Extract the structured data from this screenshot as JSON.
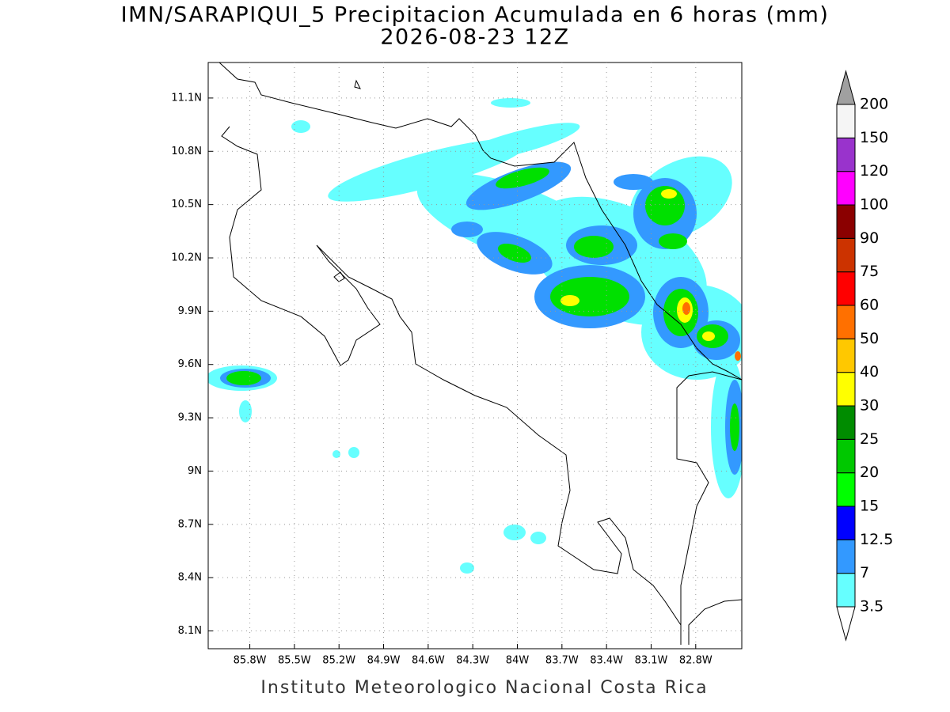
{
  "header": {
    "title": "IMN/SARAPIQUI_5 Precipitacion Acumulada en 6 horas (mm)",
    "subtitle": "2026-08-23 12Z"
  },
  "map": {
    "lon_range": [
      -86.08,
      -82.49
    ],
    "lat_range": [
      8.0,
      11.3
    ],
    "lon_ticks": [
      {
        "value": -85.8,
        "label": "85.8W"
      },
      {
        "value": -85.5,
        "label": "85.5W"
      },
      {
        "value": -85.2,
        "label": "85.2W"
      },
      {
        "value": -84.9,
        "label": "84.9W"
      },
      {
        "value": -84.6,
        "label": "84.6W"
      },
      {
        "value": -84.3,
        "label": "84.3W"
      },
      {
        "value": -84.0,
        "label": "84W"
      },
      {
        "value": -83.7,
        "label": "83.7W"
      },
      {
        "value": -83.4,
        "label": "83.4W"
      },
      {
        "value": -83.1,
        "label": "83.1W"
      },
      {
        "value": -82.8,
        "label": "82.8W"
      }
    ],
    "lat_ticks": [
      {
        "value": 11.1,
        "label": "11.1N"
      },
      {
        "value": 10.8,
        "label": "10.8N"
      },
      {
        "value": 10.5,
        "label": "10.5N"
      },
      {
        "value": 10.2,
        "label": "10.2N"
      },
      {
        "value": 9.9,
        "label": "9.9N"
      },
      {
        "value": 9.6,
        "label": "9.6N"
      },
      {
        "value": 9.3,
        "label": "9.3N"
      },
      {
        "value": 9.0,
        "label": "9N"
      },
      {
        "value": 8.7,
        "label": "8.7N"
      },
      {
        "value": 8.4,
        "label": "8.4N"
      },
      {
        "value": 8.1,
        "label": "8.1N"
      }
    ],
    "grid": true,
    "colorbar": {
      "levels": [
        3.5,
        7,
        12.5,
        15,
        20,
        25,
        30,
        40,
        50,
        60,
        75,
        90,
        100,
        120,
        150,
        200
      ],
      "colors": [
        "#66ffff",
        "#3399ff",
        "#0000ff",
        "#00ff00",
        "#00c800",
        "#008c00",
        "#ffff00",
        "#ffc800",
        "#ff7000",
        "#ff0000",
        "#cc3300",
        "#8b0000",
        "#ff00ff",
        "#9933cc",
        "#f5f5f5"
      ],
      "over_color": "#a0a0a0",
      "under_color": "#ffffff"
    }
  },
  "footer": "Instituto Meteorologico Nacional Costa Rica"
}
